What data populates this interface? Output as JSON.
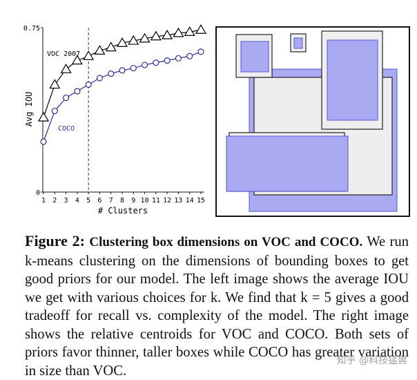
{
  "chart_data": {
    "type": "line",
    "xlabel": "# Clusters",
    "ylabel": "Avg IOU",
    "ylim": [
      0,
      0.75
    ],
    "yticks": [
      "0",
      "0.75"
    ],
    "x": [
      1,
      2,
      3,
      4,
      5,
      6,
      7,
      8,
      9,
      10,
      11,
      12,
      13,
      14,
      15
    ],
    "xticks": [
      "1",
      "2",
      "3",
      "4",
      "5",
      "6",
      "7",
      "8",
      "9",
      "10",
      "11",
      "12",
      "13",
      "14",
      "15"
    ],
    "marker_line_x": 5,
    "series": [
      {
        "name": "VOC 2007",
        "marker": "triangle",
        "color": "#000000",
        "values": [
          0.34,
          0.49,
          0.56,
          0.6,
          0.62,
          0.645,
          0.66,
          0.68,
          0.69,
          0.7,
          0.71,
          0.715,
          0.725,
          0.73,
          0.74
        ]
      },
      {
        "name": "COCO",
        "marker": "circle",
        "color": "#2b2f9e",
        "values": [
          0.23,
          0.37,
          0.43,
          0.46,
          0.49,
          0.52,
          0.54,
          0.555,
          0.565,
          0.58,
          0.59,
          0.6,
          0.61,
          0.62,
          0.64
        ]
      }
    ]
  },
  "centroids_panel": {
    "colors": {
      "voc_fill": "#eeeeee",
      "voc_stroke": "#222222",
      "coco_fill": "#aaaaf2",
      "coco_stroke": "#5555cc"
    }
  },
  "caption": {
    "label": "Figure 2:",
    "heading": "Clustering box dimensions on VOC and COCO.",
    "body": "We run k-means clustering on the dimensions of bounding boxes to get good priors for our model. The left image shows the average IOU we get with various choices for k. We find that k = 5 gives a good tradeoff for recall vs. complexity of the model. The right image shows the relative centroids for VOC and COCO. Both sets of priors favor thinner, taller boxes while COCO has greater variation in size than VOC."
  },
  "watermark": "知乎 @科技猛兽"
}
